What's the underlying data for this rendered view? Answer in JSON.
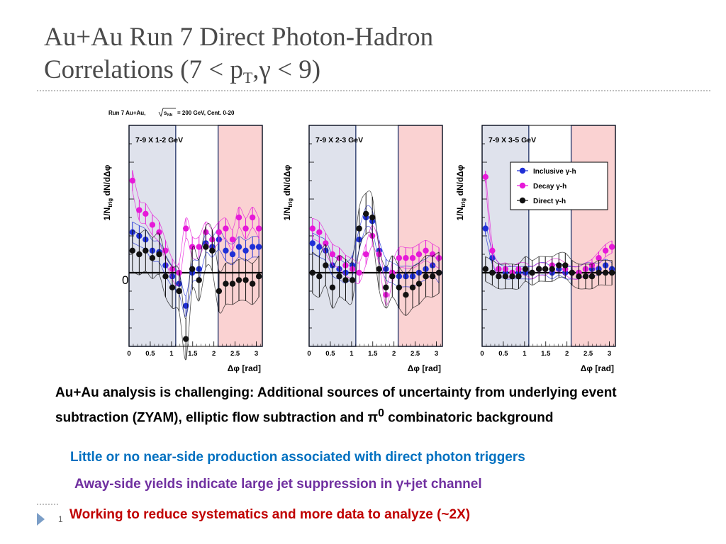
{
  "slide": {
    "title_line1": "Au+Au Run 7 Direct Photon-Hadron",
    "title_line2_pre": "Correlations (7 < p",
    "title_sub": "T",
    "title_line2_post": ",γ < 9)",
    "page_number": "1"
  },
  "figure_header": {
    "prefix": "Run 7 Au+Au,",
    "sqrt_s": "s",
    "sqrt_sub": "NN",
    "suffix": "= 200 GeV, Cent. 0-20"
  },
  "y_axis_label": "1/N",
  "y_axis_sub": "trig",
  "y_axis_tail": "dN/dΔφ",
  "x_axis_label": "Δφ [rad]",
  "zero_label": "0",
  "x_ticks": [
    "0",
    "0.5",
    "1",
    "1.5",
    "2",
    "2.5",
    "3"
  ],
  "legend": [
    {
      "label": "Inclusive γ-h",
      "color": "#1f2fd6"
    },
    {
      "label": "Decay γ-h",
      "color": "#e619d8"
    },
    {
      "label": "Direct γ-h",
      "color": "#111111"
    }
  ],
  "colors": {
    "near_band": "#dfe2ec",
    "away_band": "#fad2d2",
    "inclusive": "#1f2fd6",
    "decay": "#e619d8",
    "direct": "#111111",
    "title": "#4a4a4a",
    "blue_text": "#0070c0",
    "purple_text": "#7030a0",
    "red_text": "#c00000"
  },
  "chart_data": [
    {
      "type": "scatter",
      "title": "7-9 X 1-2 GeV",
      "xlabel": "Δφ [rad]",
      "ylabel": "1/Ntrig dN/dΔφ",
      "xlim": [
        0,
        3.1416
      ],
      "ylim": [
        -1.0,
        2.0
      ],
      "x": [
        0.08,
        0.24,
        0.39,
        0.55,
        0.71,
        0.86,
        1.02,
        1.18,
        1.34,
        1.49,
        1.65,
        1.81,
        1.96,
        2.12,
        2.28,
        2.44,
        2.59,
        2.75,
        2.91,
        3.06
      ],
      "series": [
        {
          "name": "Inclusive γ-h",
          "values": [
            0.55,
            0.5,
            0.45,
            0.3,
            0.28,
            0.1,
            -0.05,
            -0.15,
            -0.45,
            0.0,
            0.05,
            0.4,
            0.35,
            0.45,
            0.3,
            0.25,
            0.35,
            0.3,
            0.35,
            0.35
          ]
        },
        {
          "name": "Decay γ-h",
          "values": [
            1.25,
            0.85,
            0.8,
            0.65,
            0.55,
            0.3,
            0.05,
            0.0,
            0.6,
            0.35,
            0.35,
            0.55,
            0.45,
            0.55,
            0.6,
            0.45,
            0.75,
            0.6,
            0.75,
            0.6
          ]
        },
        {
          "name": "Direct γ-h",
          "values": [
            0.3,
            0.25,
            0.3,
            0.2,
            0.25,
            -0.05,
            -0.2,
            -0.25,
            -0.9,
            0.05,
            -0.1,
            0.35,
            0.3,
            -0.25,
            -0.15,
            -0.15,
            -0.1,
            -0.1,
            -0.15,
            -0.05
          ]
        }
      ]
    },
    {
      "type": "scatter",
      "title": "7-9 X 2-3 GeV",
      "xlabel": "Δφ [rad]",
      "ylabel": "1/Ntrig dN/dΔφ",
      "xlim": [
        0,
        3.1416
      ],
      "ylim": [
        -1.0,
        2.0
      ],
      "x": [
        0.08,
        0.24,
        0.39,
        0.55,
        0.71,
        0.86,
        1.02,
        1.18,
        1.34,
        1.49,
        1.65,
        1.81,
        1.96,
        2.12,
        2.28,
        2.44,
        2.59,
        2.75,
        2.91,
        3.06
      ],
      "series": [
        {
          "name": "Inclusive γ-h",
          "values": [
            0.4,
            0.35,
            0.3,
            0.1,
            0.05,
            0.0,
            0.1,
            0.45,
            0.75,
            0.7,
            0.3,
            0.05,
            0.0,
            -0.05,
            -0.05,
            -0.05,
            0.0,
            0.05,
            0.1,
            0.0
          ]
        },
        {
          "name": "Decay γ-h",
          "values": [
            0.6,
            0.55,
            0.4,
            0.25,
            0.2,
            0.1,
            0.05,
            0.0,
            0.25,
            0.5,
            0.25,
            -0.3,
            0.0,
            0.2,
            0.2,
            0.2,
            0.25,
            0.3,
            0.25,
            0.2
          ]
        },
        {
          "name": "Direct γ-h",
          "values": [
            0.0,
            -0.05,
            0.1,
            -0.2,
            -0.05,
            -0.1,
            -0.1,
            0.6,
            0.8,
            0.75,
            0.05,
            -0.2,
            -0.05,
            -0.2,
            -0.3,
            -0.2,
            -0.15,
            -0.05,
            -0.05,
            0.0
          ]
        }
      ]
    },
    {
      "type": "scatter",
      "title": "7-9 X 3-5 GeV",
      "xlabel": "Δφ [rad]",
      "ylabel": "1/Ntrig dN/dΔφ",
      "xlim": [
        0,
        3.1416
      ],
      "ylim": [
        -1.0,
        2.0
      ],
      "x": [
        0.08,
        0.24,
        0.39,
        0.55,
        0.71,
        0.86,
        1.02,
        1.18,
        1.34,
        1.49,
        1.65,
        1.81,
        1.96,
        2.12,
        2.28,
        2.44,
        2.59,
        2.75,
        2.91,
        3.06
      ],
      "series": [
        {
          "name": "Inclusive γ-h",
          "values": [
            0.6,
            0.2,
            0.05,
            0.0,
            0.0,
            0.0,
            0.0,
            0.0,
            0.05,
            0.05,
            0.0,
            0.05,
            0.0,
            0.0,
            0.0,
            0.05,
            0.05,
            0.05,
            0.1,
            0.05
          ]
        },
        {
          "name": "Decay γ-h",
          "values": [
            1.3,
            0.3,
            0.05,
            0.05,
            0.0,
            0.05,
            0.05,
            0.0,
            0.05,
            0.05,
            0.1,
            0.1,
            0.05,
            0.0,
            0.0,
            0.05,
            0.1,
            0.2,
            0.3,
            0.35
          ]
        },
        {
          "name": "Direct γ-h",
          "values": [
            0.05,
            0.0,
            -0.05,
            -0.05,
            -0.05,
            -0.05,
            0.05,
            0.0,
            0.05,
            0.05,
            0.05,
            0.1,
            0.1,
            0.0,
            -0.05,
            -0.05,
            -0.05,
            0.0,
            0.0,
            0.0
          ]
        }
      ]
    }
  ],
  "notes": {
    "main": "Au+Au analysis is challenging: Additional sources of uncertainty from underlying event subtraction (ZYAM),  elliptic flow subtraction and π",
    "main_sup": "0",
    "main_tail": " combinatoric background",
    "blue": "Little or no near-side production associated with direct photon triggers",
    "purple_pre": "Away-side yields indicate large jet suppression in ",
    "purple_gamma": "γ",
    "purple_post": "+jet channel",
    "red": "Working to reduce systematics and more data to analyze (~2X)"
  }
}
